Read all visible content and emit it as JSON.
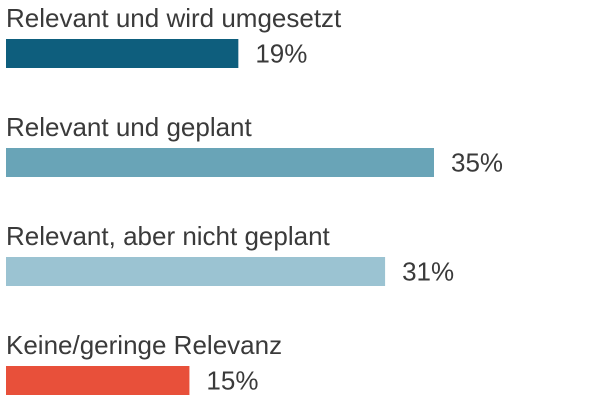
{
  "chart_data": {
    "type": "bar",
    "orientation": "horizontal",
    "categories": [
      "Relevant und wird umgesetzt",
      "Relevant und geplant",
      "Relevant, aber nicht geplant",
      "Keine/geringe Relevanz"
    ],
    "values": [
      19,
      35,
      31,
      15
    ],
    "value_labels": [
      "19%",
      "35%",
      "31%",
      "15%"
    ],
    "colors": [
      "#0e5e7d",
      "#69a4b7",
      "#9bc3d2",
      "#e8503a"
    ],
    "unit": "%",
    "title": "",
    "xlabel": "",
    "ylabel": "",
    "xlim": [
      0,
      35
    ],
    "grid": false,
    "legend": "none"
  }
}
